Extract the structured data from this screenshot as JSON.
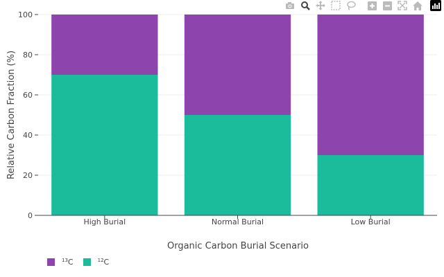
{
  "toolbar": {
    "buttons": [
      "camera-icon",
      "zoom-icon",
      "pan-icon",
      "box-select-icon",
      "lasso-select-icon",
      "zoom-in-icon",
      "zoom-out-icon",
      "autoscale-icon",
      "reset-axes-icon"
    ],
    "logo": "plotly-logo-icon"
  },
  "chart_data": {
    "type": "bar",
    "barmode": "stack",
    "categories": [
      "High Burial",
      "Normal Burial",
      "Low Burial"
    ],
    "series": [
      {
        "name": "12C",
        "mass_number": "12",
        "element": "C",
        "values": [
          70,
          50,
          30
        ],
        "color": "#1abc9c"
      },
      {
        "name": "13C",
        "mass_number": "13",
        "element": "C",
        "values": [
          30,
          50,
          70
        ],
        "color": "#8e44ad"
      }
    ],
    "xlabel": "Organic Carbon Burial Scenario",
    "ylabel": "Relative Carbon Fraction (%)",
    "ylim": [
      0,
      100
    ],
    "yticks": [
      0,
      20,
      40,
      60,
      80,
      100
    ],
    "grid": true,
    "legend": {
      "placement": "bottom-left",
      "order": [
        "13C",
        "12C"
      ]
    }
  }
}
